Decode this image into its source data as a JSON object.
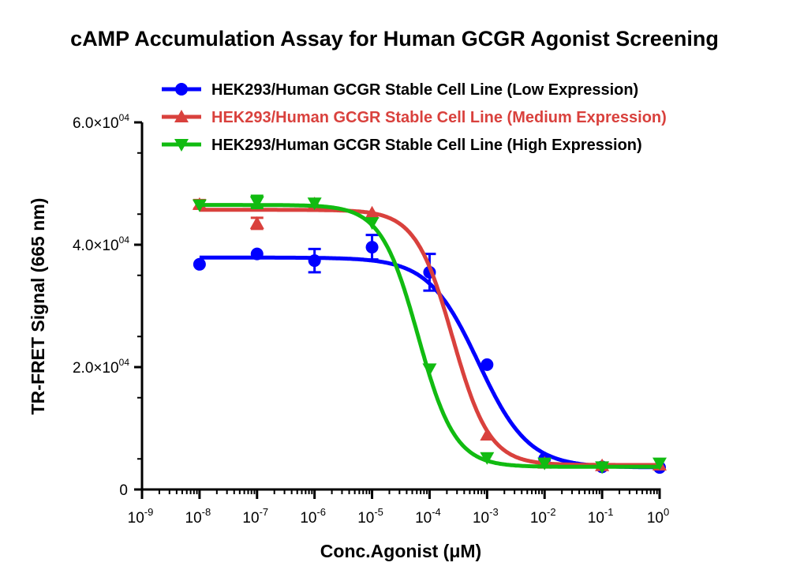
{
  "chart_data": {
    "type": "scatter",
    "title": "cAMP Accumulation Assay for Human GCGR Agonist Screening",
    "xlabel": "Conc.Agonist (μM)",
    "ylabel": "TR-FRET Signal (665 nm)",
    "xscale": "log",
    "xlim": [
      1e-09,
      1
    ],
    "ylim": [
      0,
      60000
    ],
    "x_tick_labels": [
      {
        "base": "10",
        "exp": "-9"
      },
      {
        "base": "10",
        "exp": "-8"
      },
      {
        "base": "10",
        "exp": "-7"
      },
      {
        "base": "10",
        "exp": "-6"
      },
      {
        "base": "10",
        "exp": "-5"
      },
      {
        "base": "10",
        "exp": "-4"
      },
      {
        "base": "10",
        "exp": "-3"
      },
      {
        "base": "10",
        "exp": "-2"
      },
      {
        "base": "10",
        "exp": "-1"
      },
      {
        "base": "10",
        "exp": "0"
      }
    ],
    "y_tick_labels": [
      {
        "value": 0,
        "label": "0",
        "exp": ""
      },
      {
        "value": 20000,
        "label": "2.0×10",
        "exp": "04"
      },
      {
        "value": 40000,
        "label": "4.0×10",
        "exp": "04"
      },
      {
        "value": 60000,
        "label": "6.0×10",
        "exp": "04"
      }
    ],
    "grid": false,
    "legend_position": "top",
    "x": [
      1e-08,
      1e-07,
      1e-06,
      1e-05,
      0.0001,
      0.001,
      0.01,
      0.1,
      1
    ],
    "series": [
      {
        "name": "HEK293/Human GCGR Stable Cell Line (Low Expression)",
        "color": "#0000ff",
        "marker": "circle",
        "values": [
          36800,
          38500,
          37400,
          39600,
          35500,
          20400,
          5000,
          3700,
          3600
        ],
        "errors": [
          0,
          0,
          1900,
          2000,
          3000,
          0,
          0,
          0,
          0
        ],
        "fit": {
          "top": 37900,
          "bottom": 3600,
          "logEC50": -3.15,
          "hill": 1.0
        }
      },
      {
        "name": "HEK293/Human GCGR Stable Cell Line (Medium Expression)",
        "color": "#d9413d",
        "marker": "triangle-up",
        "values": [
          46600,
          43500,
          46700,
          45200,
          null,
          8900,
          4300,
          3900,
          4000
        ],
        "errors": [
          700,
          900,
          0,
          0,
          0,
          0,
          0,
          0,
          0
        ],
        "fit": {
          "top": 45700,
          "bottom": 4000,
          "logEC50": -3.6,
          "hill": 1.35
        }
      },
      {
        "name": "HEK293/Human GCGR Stable Cell Line (High Expression)",
        "color": "#11bb11",
        "marker": "triangle-down",
        "values": [
          46500,
          47000,
          46800,
          43600,
          19700,
          5200,
          4300,
          3700,
          4300
        ],
        "errors": [
          0,
          1000,
          0,
          0,
          0,
          0,
          0,
          0,
          0
        ],
        "fit": {
          "top": 46500,
          "bottom": 3700,
          "logEC50": -4.2,
          "hill": 1.35
        }
      }
    ]
  }
}
